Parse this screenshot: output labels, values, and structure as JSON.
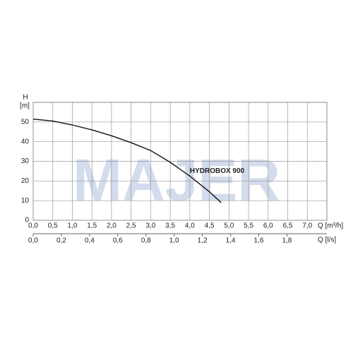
{
  "chart_data": {
    "type": "line",
    "watermark": "MAJER",
    "y_label_top": "H",
    "y_label_unit": "[m]",
    "x_label": "Q [m³/h]",
    "x2_label": "Q [l/s]",
    "annotation": {
      "text": "HYDROBOX 900",
      "x": 4.0,
      "y": 25
    },
    "x": [
      0,
      0.5,
      1.0,
      1.5,
      2.0,
      2.5,
      3.0,
      3.5,
      4.0,
      4.5,
      4.8
    ],
    "series": [
      {
        "name": "HYDROBOX 900",
        "color": "#111111",
        "values": [
          51.5,
          50.5,
          48.5,
          46,
          43,
          39.5,
          35.5,
          29.5,
          22.5,
          14.5,
          9
        ]
      }
    ],
    "xlim": [
      0,
      7.5
    ],
    "ylim": [
      0,
      60
    ],
    "xticks": [
      {
        "value": 0,
        "label": "0,0"
      },
      {
        "value": 0.5,
        "label": "0,5"
      },
      {
        "value": 1.0,
        "label": "1,0"
      },
      {
        "value": 1.5,
        "label": "1,5"
      },
      {
        "value": 2.0,
        "label": "2,0"
      },
      {
        "value": 2.5,
        "label": "2,5"
      },
      {
        "value": 3.0,
        "label": "3,0"
      },
      {
        "value": 3.5,
        "label": "3,5"
      },
      {
        "value": 4.0,
        "label": "4,0"
      },
      {
        "value": 4.5,
        "label": "4,5"
      },
      {
        "value": 5.0,
        "label": "5,0"
      },
      {
        "value": 5.5,
        "label": "5,5"
      },
      {
        "value": 6.0,
        "label": "6,0"
      },
      {
        "value": 6.5,
        "label": "6,5"
      },
      {
        "value": 7.0,
        "label": "7,0"
      }
    ],
    "yticks": [
      0,
      10,
      20,
      30,
      40,
      50
    ],
    "x2lim": [
      0,
      2.0833
    ],
    "x2ticks": [
      {
        "value": 0,
        "label": "0,0"
      },
      {
        "value": 0.2,
        "label": "0,2"
      },
      {
        "value": 0.4,
        "label": "0,4"
      },
      {
        "value": 0.6,
        "label": "0,6"
      },
      {
        "value": 0.8,
        "label": "0,8"
      },
      {
        "value": 1.0,
        "label": "1,0"
      },
      {
        "value": 1.2,
        "label": "1,2"
      },
      {
        "value": 1.4,
        "label": "1,4"
      },
      {
        "value": 1.6,
        "label": "1,6"
      },
      {
        "value": 1.8,
        "label": "1,8"
      }
    ],
    "grid": true
  }
}
